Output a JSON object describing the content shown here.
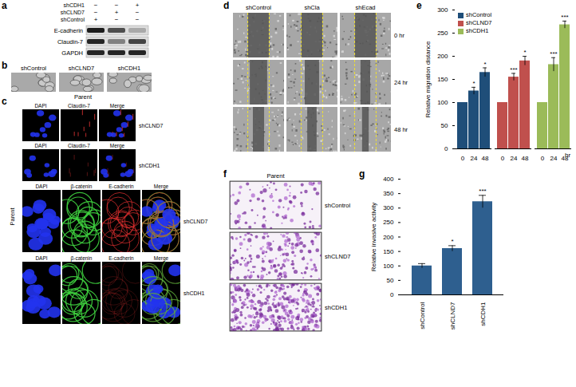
{
  "figure": {
    "panel_labels": [
      "a",
      "b",
      "c",
      "d",
      "e",
      "f",
      "g"
    ],
    "a": {
      "conditions": [
        {
          "name": "shCDH1",
          "marks": [
            "−",
            "−",
            "+"
          ]
        },
        {
          "name": "shCLND7",
          "marks": [
            "−",
            "+",
            "−"
          ]
        },
        {
          "name": "shControl",
          "marks": [
            "+",
            "−",
            "−"
          ]
        }
      ],
      "bands": [
        {
          "label": "E-cadherin",
          "intensity": [
            0.95,
            0.7,
            0.25
          ]
        },
        {
          "label": "Claudin-7",
          "intensity": [
            0.9,
            0.45,
            0.75
          ]
        },
        {
          "label": "GAPDH",
          "intensity": [
            0.9,
            0.9,
            0.9
          ]
        }
      ]
    },
    "b": {
      "labels": [
        "shControl",
        "shCLND7",
        "shCDH1"
      ],
      "caption": "Parent"
    },
    "c": {
      "side_label": "Parent",
      "rows": [
        {
          "channels": [
            "DAPI",
            "Claudin-7",
            "Merge"
          ],
          "label": "shCLND7"
        },
        {
          "channels": [
            "DAPI",
            "Claudin-7",
            "Merge"
          ],
          "label": "shCDH1"
        },
        {
          "channels": [
            "DAPI",
            "β-catenin",
            "E-cadherin",
            "Merge"
          ],
          "label": "shCLND7"
        },
        {
          "channels": [
            "DAPI",
            "β-catenin",
            "E-cadherin",
            "Merge"
          ],
          "label": "shCDH1"
        }
      ]
    },
    "d": {
      "columns": [
        "shControl",
        "shCla",
        "shEcad"
      ],
      "times": [
        "0 hr",
        "24 hr",
        "48 hr"
      ]
    },
    "f": {
      "title": "Parent",
      "labels": [
        "shControl",
        "shCLND7",
        "shCDH1"
      ]
    }
  },
  "chart_data": [
    {
      "type": "bar",
      "y_label": "Relative migration distance",
      "x_label": "hr",
      "categories": [
        "0",
        "24",
        "48"
      ],
      "series": [
        {
          "name": "shControl",
          "color": "#1f4e79",
          "values": [
            100,
            125,
            165
          ],
          "errors": [
            null,
            8,
            10
          ],
          "significance": [
            null,
            "*",
            "*"
          ]
        },
        {
          "name": "shCLND7",
          "color": "#c0504d",
          "values": [
            100,
            155,
            190
          ],
          "errors": [
            null,
            8,
            10
          ],
          "significance": [
            null,
            "***",
            "*"
          ]
        },
        {
          "name": "shCDH1",
          "color": "#9bbb59",
          "values": [
            100,
            182,
            268
          ],
          "errors": [
            null,
            15,
            8
          ],
          "significance": [
            null,
            "***",
            "***"
          ]
        }
      ],
      "ylim": [
        0,
        300
      ],
      "yticks": [
        0,
        50,
        100,
        150,
        200,
        250,
        300
      ],
      "legend": "top-left",
      "grid": false
    },
    {
      "type": "bar",
      "y_label": "Relative invasive activity",
      "categories": [
        "shControl",
        "shCLND7",
        "shCDH1"
      ],
      "values": [
        100,
        160,
        322
      ],
      "errors": [
        8,
        10,
        22
      ],
      "significance": [
        null,
        "*",
        "***"
      ],
      "color": "#2e5f8f",
      "ylim": [
        0,
        400
      ],
      "yticks": [
        0,
        50,
        100,
        150,
        200,
        250,
        300,
        350,
        400
      ],
      "grid": false
    }
  ]
}
